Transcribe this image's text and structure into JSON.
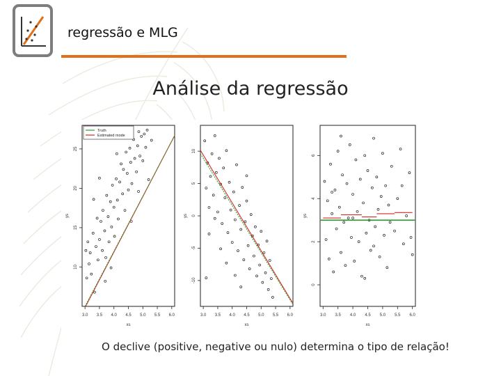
{
  "header": {
    "title": "regressão e MLG",
    "accent_color": "#e0701c",
    "logo_icon": "scatter-plot-icon"
  },
  "slide": {
    "title": "Análise da regressão",
    "caption": "O declive (positive, negative ou nulo) determina o tipo de relação!"
  },
  "chart_data": [
    {
      "type": "scatter",
      "xlabel": "xs",
      "ylabel": "ys",
      "xlim": [
        2.9,
        6.1
      ],
      "ylim": [
        5,
        28
      ],
      "xticks": [
        "3.0",
        "3.5",
        "4.0",
        "4.5",
        "5.0",
        "5.5",
        "6.0"
      ],
      "yticks": [
        "10",
        "15",
        "20",
        "25"
      ],
      "legend": {
        "position": "top-left",
        "entries": [
          {
            "name": "Truth",
            "color": "#2ca02c"
          },
          {
            "name": "Estimated mode",
            "color": "#d62728"
          }
        ]
      },
      "truth": {
        "intercept": -16.0,
        "slope": 7.0
      },
      "estimated": {
        "intercept": -16.3,
        "slope": 7.05
      },
      "points": [
        [
          3.03,
          12.1
        ],
        [
          3.06,
          8.6
        ],
        [
          3.1,
          13.2
        ],
        [
          3.14,
          10.4
        ],
        [
          3.18,
          11.8
        ],
        [
          3.22,
          9.1
        ],
        [
          3.28,
          14.3
        ],
        [
          3.33,
          6.8
        ],
        [
          3.38,
          12.6
        ],
        [
          3.42,
          16.2
        ],
        [
          3.45,
          10.9
        ],
        [
          3.5,
          13.5
        ],
        [
          3.55,
          15.8
        ],
        [
          3.6,
          12.1
        ],
        [
          3.62,
          17.2
        ],
        [
          3.68,
          14.6
        ],
        [
          3.72,
          11.2
        ],
        [
          3.75,
          19.1
        ],
        [
          3.8,
          16.4
        ],
        [
          3.83,
          13.2
        ],
        [
          3.88,
          18.3
        ],
        [
          3.92,
          15.1
        ],
        [
          3.95,
          20.4
        ],
        [
          4.0,
          17.6
        ],
        [
          4.02,
          13.9
        ],
        [
          4.08,
          21.2
        ],
        [
          4.12,
          18.5
        ],
        [
          4.15,
          16.1
        ],
        [
          4.2,
          20.8
        ],
        [
          4.25,
          23.1
        ],
        [
          4.3,
          19.3
        ],
        [
          4.33,
          22.4
        ],
        [
          4.38,
          17.2
        ],
        [
          4.42,
          24.6
        ],
        [
          4.46,
          21.9
        ],
        [
          4.5,
          19.8
        ],
        [
          4.55,
          25.1
        ],
        [
          4.58,
          23.3
        ],
        [
          4.62,
          20.6
        ],
        [
          4.68,
          26.2
        ],
        [
          4.72,
          23.8
        ],
        [
          4.78,
          22.1
        ],
        [
          4.82,
          25.4
        ],
        [
          4.86,
          27.2
        ],
        [
          4.9,
          24.1
        ],
        [
          4.95,
          26.6
        ],
        [
          5.0,
          23.5
        ],
        [
          5.05,
          26.9
        ],
        [
          5.1,
          25.2
        ],
        [
          5.15,
          27.4
        ],
        [
          3.3,
          18.6
        ],
        [
          3.7,
          8.2
        ],
        [
          4.1,
          24.4
        ],
        [
          4.6,
          15.8
        ],
        [
          5.2,
          21.1
        ],
        [
          3.5,
          21.3
        ],
        [
          3.9,
          9.9
        ],
        [
          4.4,
          27.1
        ],
        [
          4.85,
          19.6
        ],
        [
          5.3,
          26.1
        ]
      ]
    },
    {
      "type": "scatter",
      "xlabel": "xs",
      "ylabel": "ys",
      "xlim": [
        2.9,
        6.1
      ],
      "ylim": [
        -14,
        14
      ],
      "xticks": [
        "3.0",
        "3.5",
        "4.0",
        "4.5",
        "5.0",
        "5.5",
        "6.0"
      ],
      "yticks": [
        "-10",
        "-5",
        "0",
        "5",
        "10"
      ],
      "truth": {
        "intercept": 30.8,
        "slope": -7.3
      },
      "estimated": {
        "intercept": 31.6,
        "slope": -7.4
      },
      "points": [
        [
          3.05,
          11.6
        ],
        [
          3.1,
          4.3
        ],
        [
          3.15,
          8.2
        ],
        [
          3.2,
          1.3
        ],
        [
          3.25,
          6.1
        ],
        [
          3.3,
          9.6
        ],
        [
          3.35,
          3.2
        ],
        [
          3.4,
          12.4
        ],
        [
          3.45,
          6.7
        ],
        [
          3.5,
          0.6
        ],
        [
          3.55,
          8.9
        ],
        [
          3.6,
          4.9
        ],
        [
          3.65,
          -1.2
        ],
        [
          3.7,
          7.4
        ],
        [
          3.75,
          2.8
        ],
        [
          3.8,
          10.1
        ],
        [
          3.85,
          -2.6
        ],
        [
          3.9,
          5.2
        ],
        [
          3.95,
          0.9
        ],
        [
          4.0,
          -4.1
        ],
        [
          4.05,
          3.7
        ],
        [
          4.1,
          -0.6
        ],
        [
          4.15,
          7.9
        ],
        [
          4.2,
          -5.4
        ],
        [
          4.25,
          1.6
        ],
        [
          4.3,
          -2.1
        ],
        [
          4.35,
          4.4
        ],
        [
          4.4,
          -6.8
        ],
        [
          4.45,
          -0.9
        ],
        [
          4.5,
          2.3
        ],
        [
          4.55,
          -4.6
        ],
        [
          4.6,
          -8.2
        ],
        [
          4.65,
          0.2
        ],
        [
          4.7,
          -3.1
        ],
        [
          4.75,
          -6.2
        ],
        [
          4.8,
          -1.7
        ],
        [
          4.85,
          -9.3
        ],
        [
          4.9,
          -4.5
        ],
        [
          4.95,
          -7.6
        ],
        [
          5.0,
          -2.4
        ],
        [
          5.05,
          -10.3
        ],
        [
          5.1,
          -5.7
        ],
        [
          5.15,
          -8.8
        ],
        [
          5.2,
          -3.9
        ],
        [
          5.25,
          -11.4
        ],
        [
          5.3,
          -6.9
        ],
        [
          5.35,
          -9.7
        ],
        [
          5.4,
          -12.6
        ],
        [
          3.4,
          -0.4
        ],
        [
          3.6,
          -5.1
        ],
        [
          4.1,
          -9.2
        ],
        [
          4.5,
          6.2
        ],
        [
          3.2,
          -2.8
        ],
        [
          3.8,
          -7.3
        ],
        [
          4.3,
          -11.0
        ],
        [
          3.1,
          -9.6
        ]
      ]
    },
    {
      "type": "scatter",
      "xlabel": "xs",
      "ylabel": "ys",
      "xlim": [
        2.9,
        6.1
      ],
      "ylim": [
        -1,
        7.4
      ],
      "xticks": [
        "3.0",
        "3.5",
        "4.0",
        "4.5",
        "5.0",
        "5.5",
        "6.0"
      ],
      "yticks": [
        "0",
        "2",
        "4",
        "6"
      ],
      "truth": {
        "intercept": 3.0,
        "slope": 0.0
      },
      "estimated": {
        "intercept": 3.2,
        "slope": 0.02,
        "stepped": true
      },
      "points": [
        [
          3.05,
          4.8
        ],
        [
          3.1,
          2.1
        ],
        [
          3.15,
          3.9
        ],
        [
          3.2,
          1.2
        ],
        [
          3.25,
          5.6
        ],
        [
          3.3,
          3.3
        ],
        [
          3.35,
          0.6
        ],
        [
          3.4,
          4.4
        ],
        [
          3.45,
          2.6
        ],
        [
          3.5,
          6.2
        ],
        [
          3.55,
          3.6
        ],
        [
          3.6,
          1.5
        ],
        [
          3.65,
          5.1
        ],
        [
          3.7,
          2.9
        ],
        [
          3.75,
          0.9
        ],
        [
          3.8,
          4.7
        ],
        [
          3.85,
          3.1
        ],
        [
          3.9,
          6.5
        ],
        [
          3.95,
          2.2
        ],
        [
          4.0,
          4.2
        ],
        [
          4.05,
          1.1
        ],
        [
          4.1,
          5.8
        ],
        [
          4.15,
          3.4
        ],
        [
          4.2,
          2.0
        ],
        [
          4.25,
          4.9
        ],
        [
          4.3,
          0.4
        ],
        [
          4.35,
          3.8
        ],
        [
          4.4,
          6.0
        ],
        [
          4.45,
          2.4
        ],
        [
          4.5,
          5.3
        ],
        [
          4.55,
          3.0
        ],
        [
          4.6,
          1.6
        ],
        [
          4.65,
          4.5
        ],
        [
          4.7,
          6.8
        ],
        [
          4.75,
          2.7
        ],
        [
          4.8,
          5.0
        ],
        [
          4.85,
          3.5
        ],
        [
          4.9,
          1.3
        ],
        [
          4.95,
          4.1
        ],
        [
          5.0,
          6.1
        ],
        [
          5.05,
          2.3
        ],
        [
          5.1,
          4.6
        ],
        [
          5.15,
          0.8
        ],
        [
          5.2,
          3.7
        ],
        [
          5.3,
          5.5
        ],
        [
          5.4,
          2.5
        ],
        [
          5.5,
          4.0
        ],
        [
          5.6,
          6.3
        ],
        [
          5.7,
          1.9
        ],
        [
          5.8,
          3.2
        ],
        [
          5.9,
          5.2
        ],
        [
          6.0,
          1.4
        ],
        [
          3.3,
          4.3
        ],
        [
          4.0,
          3.1
        ],
        [
          4.7,
          1.8
        ],
        [
          5.25,
          2.9
        ],
        [
          5.65,
          4.6
        ],
        [
          5.95,
          2.2
        ],
        [
          3.6,
          6.9
        ],
        [
          4.4,
          0.3
        ]
      ]
    }
  ]
}
